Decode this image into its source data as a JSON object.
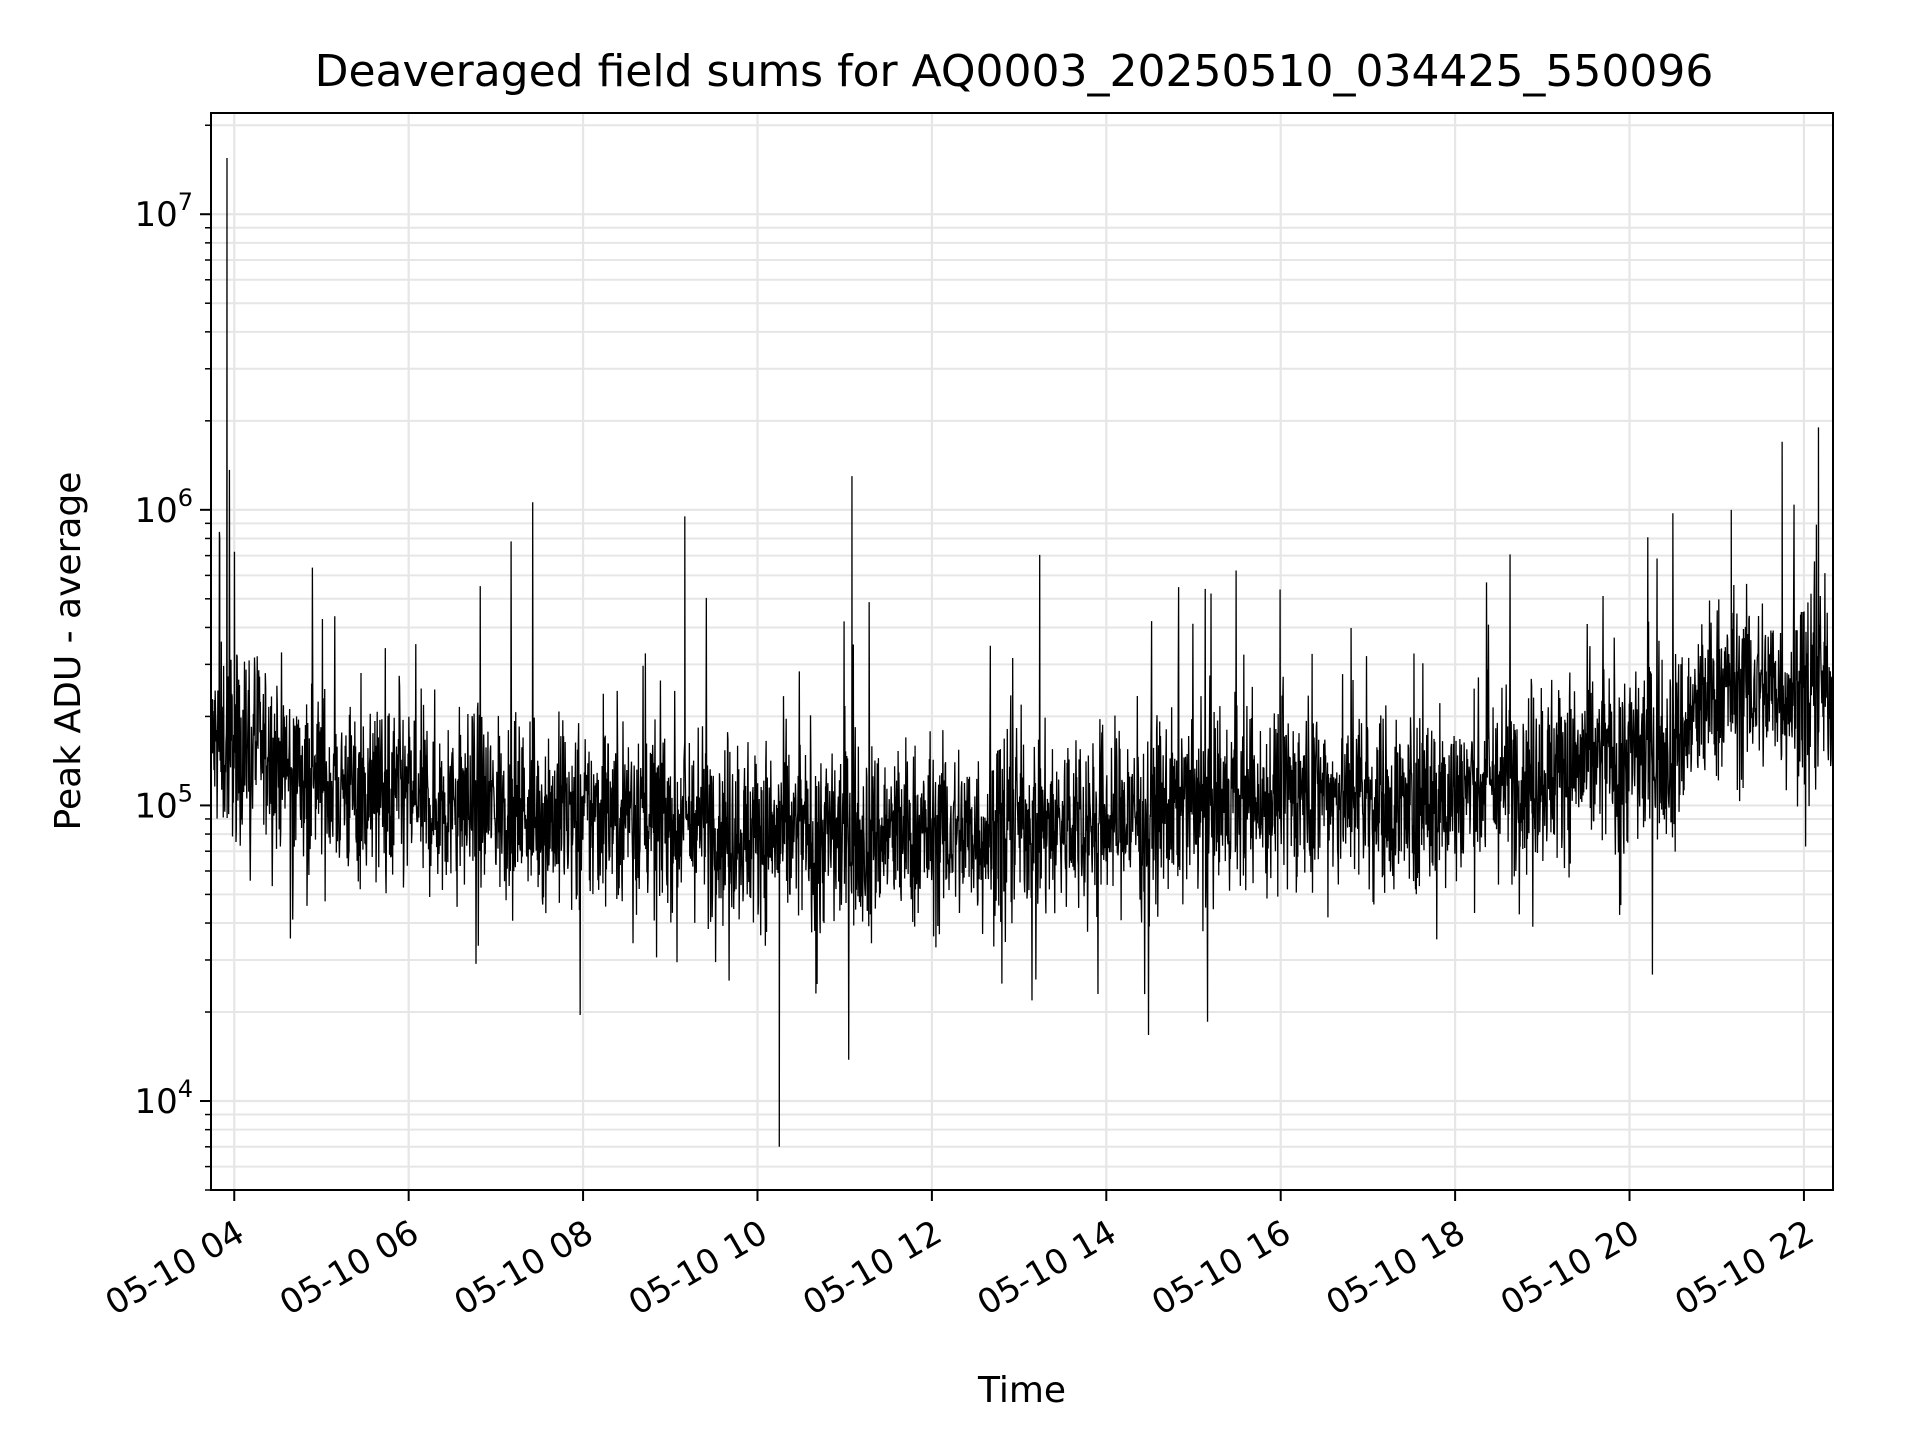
{
  "chart_data": {
    "type": "line",
    "title": "Deaveraged field sums for AQ0003_20250510_034425_550096",
    "xlabel": "Time",
    "ylabel": "Peak ADU - average",
    "yscale": "log",
    "ylim": [
      5000,
      22000000
    ],
    "xlim": [
      "05-10 03:44",
      "05-10 22:20"
    ],
    "grid": true,
    "x_ticks": [
      "05-10 04",
      "05-10 06",
      "05-10 08",
      "05-10 10",
      "05-10 12",
      "05-10 14",
      "05-10 16",
      "05-10 18",
      "05-10 20",
      "05-10 22"
    ],
    "y_ticks": [
      {
        "value": 10000,
        "base": "10",
        "exp": "4"
      },
      {
        "value": 100000,
        "base": "10",
        "exp": "5"
      },
      {
        "value": 1000000,
        "base": "10",
        "exp": "6"
      },
      {
        "value": 10000000,
        "base": "10",
        "exp": "7"
      }
    ],
    "series": [
      {
        "color": "#000000",
        "x": [
          "05-10 03:45",
          "05-10 03:50",
          "05-10 03:55",
          "05-10 04:00",
          "05-10 04:10",
          "05-10 04:20",
          "05-10 04:30",
          "05-10 04:45",
          "05-10 05:00",
          "05-10 05:30",
          "05-10 06:00",
          "05-10 06:30",
          "05-10 07:00",
          "05-10 07:30",
          "05-10 08:00",
          "05-10 08:30",
          "05-10 09:00",
          "05-10 09:10",
          "05-10 09:30",
          "05-10 10:00",
          "05-10 10:15",
          "05-10 10:30",
          "05-10 11:00",
          "05-10 11:05",
          "05-10 11:30",
          "05-10 12:00",
          "05-10 12:30",
          "05-10 13:00",
          "05-10 13:30",
          "05-10 14:00",
          "05-10 14:30",
          "05-10 15:00",
          "05-10 15:30",
          "05-10 16:00",
          "05-10 16:30",
          "05-10 17:00",
          "05-10 17:30",
          "05-10 18:00",
          "05-10 18:30",
          "05-10 19:00",
          "05-10 19:30",
          "05-10 20:00",
          "05-10 20:30",
          "05-10 21:00",
          "05-10 21:10",
          "05-10 21:30",
          "05-10 21:45",
          "05-10 22:00",
          "05-10 22:10",
          "05-10 22:20"
        ],
        "y": [
          150000,
          800000,
          15500000,
          180000,
          160000,
          150000,
          140000,
          130000,
          120000,
          110000,
          105000,
          100000,
          100000,
          95000,
          90000,
          100000,
          110000,
          950000,
          90000,
          80000,
          7000,
          80000,
          90000,
          1300000,
          85000,
          80000,
          80000,
          90000,
          85000,
          90000,
          95000,
          100000,
          100000,
          110000,
          110000,
          105000,
          100000,
          110000,
          120000,
          130000,
          140000,
          150000,
          160000,
          250000,
          1000000,
          250000,
          1700000,
          250000,
          1900000,
          250000
        ]
      }
    ]
  }
}
